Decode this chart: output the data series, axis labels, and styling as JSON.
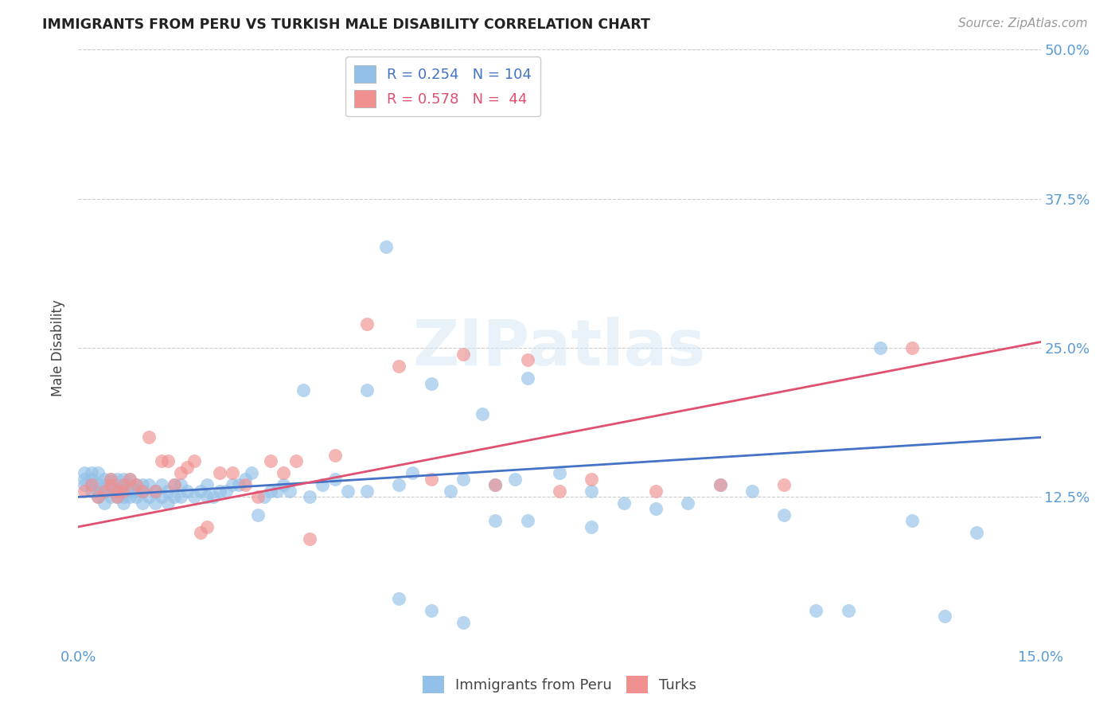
{
  "title": "IMMIGRANTS FROM PERU VS TURKISH MALE DISABILITY CORRELATION CHART",
  "source": "Source: ZipAtlas.com",
  "ylabel_label": "Male Disability",
  "x_min": 0.0,
  "x_max": 0.15,
  "y_min": 0.0,
  "y_max": 0.5,
  "blue_color": "#92C0E8",
  "pink_color": "#F09090",
  "blue_line_color": "#4472C4",
  "pink_line_color": "#E05070",
  "tick_color": "#5B9BD5",
  "watermark": "ZIPatlas",
  "blue_N": 104,
  "pink_N": 44,
  "blue_R": 0.254,
  "pink_R": 0.578,
  "blue_x": [
    0.001,
    0.001,
    0.001,
    0.002,
    0.002,
    0.002,
    0.002,
    0.003,
    0.003,
    0.003,
    0.003,
    0.004,
    0.004,
    0.004,
    0.004,
    0.005,
    0.005,
    0.005,
    0.005,
    0.006,
    0.006,
    0.006,
    0.006,
    0.007,
    0.007,
    0.007,
    0.007,
    0.008,
    0.008,
    0.008,
    0.008,
    0.009,
    0.009,
    0.009,
    0.01,
    0.01,
    0.01,
    0.011,
    0.011,
    0.012,
    0.012,
    0.013,
    0.013,
    0.014,
    0.014,
    0.015,
    0.015,
    0.016,
    0.016,
    0.017,
    0.018,
    0.019,
    0.02,
    0.02,
    0.021,
    0.022,
    0.023,
    0.024,
    0.025,
    0.026,
    0.027,
    0.028,
    0.029,
    0.03,
    0.031,
    0.032,
    0.033,
    0.035,
    0.036,
    0.038,
    0.04,
    0.042,
    0.045,
    0.048,
    0.05,
    0.052,
    0.055,
    0.058,
    0.06,
    0.063,
    0.065,
    0.068,
    0.07,
    0.075,
    0.08,
    0.085,
    0.09,
    0.095,
    0.1,
    0.105,
    0.11,
    0.115,
    0.12,
    0.125,
    0.13,
    0.135,
    0.14,
    0.045,
    0.05,
    0.055,
    0.06,
    0.065,
    0.07,
    0.08
  ],
  "blue_y": [
    0.135,
    0.14,
    0.145,
    0.13,
    0.135,
    0.14,
    0.145,
    0.125,
    0.13,
    0.135,
    0.145,
    0.12,
    0.13,
    0.135,
    0.14,
    0.125,
    0.13,
    0.135,
    0.14,
    0.125,
    0.13,
    0.135,
    0.14,
    0.12,
    0.125,
    0.135,
    0.14,
    0.125,
    0.13,
    0.135,
    0.14,
    0.125,
    0.13,
    0.135,
    0.12,
    0.13,
    0.135,
    0.125,
    0.135,
    0.12,
    0.13,
    0.125,
    0.135,
    0.12,
    0.13,
    0.125,
    0.135,
    0.125,
    0.135,
    0.13,
    0.125,
    0.13,
    0.125,
    0.135,
    0.125,
    0.13,
    0.13,
    0.135,
    0.135,
    0.14,
    0.145,
    0.11,
    0.125,
    0.13,
    0.13,
    0.135,
    0.13,
    0.215,
    0.125,
    0.135,
    0.14,
    0.13,
    0.215,
    0.335,
    0.135,
    0.145,
    0.22,
    0.13,
    0.14,
    0.195,
    0.135,
    0.14,
    0.225,
    0.145,
    0.13,
    0.12,
    0.115,
    0.12,
    0.135,
    0.13,
    0.11,
    0.03,
    0.03,
    0.25,
    0.105,
    0.025,
    0.095,
    0.13,
    0.04,
    0.03,
    0.02,
    0.105,
    0.105,
    0.1
  ],
  "pink_x": [
    0.001,
    0.002,
    0.003,
    0.004,
    0.005,
    0.005,
    0.006,
    0.006,
    0.007,
    0.007,
    0.008,
    0.009,
    0.01,
    0.011,
    0.012,
    0.013,
    0.014,
    0.015,
    0.016,
    0.017,
    0.018,
    0.019,
    0.02,
    0.022,
    0.024,
    0.026,
    0.028,
    0.03,
    0.032,
    0.034,
    0.036,
    0.04,
    0.045,
    0.05,
    0.055,
    0.06,
    0.065,
    0.07,
    0.075,
    0.08,
    0.09,
    0.1,
    0.11,
    0.13
  ],
  "pink_y": [
    0.13,
    0.135,
    0.125,
    0.13,
    0.135,
    0.14,
    0.13,
    0.125,
    0.135,
    0.13,
    0.14,
    0.135,
    0.13,
    0.175,
    0.13,
    0.155,
    0.155,
    0.135,
    0.145,
    0.15,
    0.155,
    0.095,
    0.1,
    0.145,
    0.145,
    0.135,
    0.125,
    0.155,
    0.145,
    0.155,
    0.09,
    0.16,
    0.27,
    0.235,
    0.14,
    0.245,
    0.135,
    0.24,
    0.13,
    0.14,
    0.13,
    0.135,
    0.135,
    0.25
  ]
}
